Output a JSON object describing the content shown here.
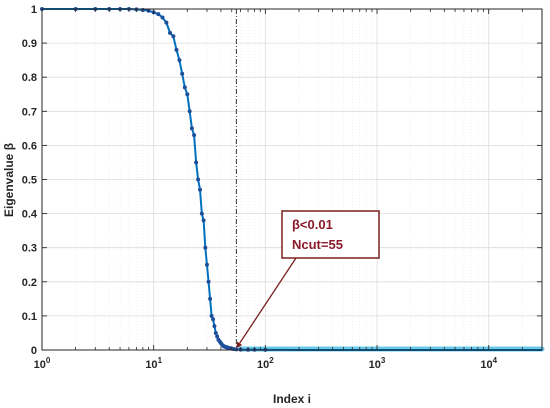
{
  "chart_data": {
    "type": "line",
    "xscale": "log",
    "xlim": [
      1,
      30000
    ],
    "ylim": [
      0,
      1
    ],
    "xlabel": "Index i",
    "ylabel": "Eigenvalue β",
    "grid": true,
    "x_ticks": [
      {
        "value": 1,
        "base": "10",
        "exp": "0"
      },
      {
        "value": 10,
        "base": "10",
        "exp": "1"
      },
      {
        "value": 100,
        "base": "10",
        "exp": "2"
      },
      {
        "value": 1000,
        "base": "10",
        "exp": "3"
      },
      {
        "value": 10000,
        "base": "10",
        "exp": "4"
      }
    ],
    "y_ticks": [
      {
        "value": 0,
        "label": "0"
      },
      {
        "value": 0.1,
        "label": "0.1"
      },
      {
        "value": 0.2,
        "label": "0.2"
      },
      {
        "value": 0.3,
        "label": "0.3"
      },
      {
        "value": 0.4,
        "label": "0.4"
      },
      {
        "value": 0.5,
        "label": "0.5"
      },
      {
        "value": 0.6,
        "label": "0.6"
      },
      {
        "value": 0.7,
        "label": "0.7"
      },
      {
        "value": 0.8,
        "label": "0.8"
      },
      {
        "value": 0.9,
        "label": "0.9"
      },
      {
        "value": 1,
        "label": "1"
      }
    ],
    "series": [
      {
        "color": "#0072BD",
        "marker_color": "#1F4E9A",
        "x": [
          1,
          2,
          3,
          4,
          5,
          6,
          7,
          8,
          9,
          10,
          11,
          12,
          13,
          14,
          15,
          16,
          17,
          18,
          19,
          20,
          21,
          22,
          23,
          24,
          25,
          26,
          27,
          28,
          29,
          30,
          31,
          32,
          33,
          34,
          35,
          36,
          37,
          38,
          39,
          40,
          41,
          42,
          43,
          44,
          45,
          46,
          47,
          48,
          49,
          50,
          52,
          55,
          60,
          70,
          80,
          100,
          150,
          200,
          300,
          500,
          1000,
          2000,
          5000,
          10000,
          30000
        ],
        "y": [
          1,
          1,
          1,
          1,
          1,
          1,
          0.999,
          0.997,
          0.995,
          0.99,
          0.985,
          0.975,
          0.96,
          0.93,
          0.92,
          0.88,
          0.85,
          0.81,
          0.77,
          0.75,
          0.7,
          0.65,
          0.63,
          0.55,
          0.5,
          0.47,
          0.4,
          0.38,
          0.3,
          0.25,
          0.2,
          0.15,
          0.1,
          0.09,
          0.07,
          0.05,
          0.04,
          0.03,
          0.025,
          0.02,
          0.015,
          0.012,
          0.01,
          0.009,
          0.008,
          0.007,
          0.006,
          0.005,
          0.005,
          0.004,
          0.003,
          0.002,
          0.001,
          0.0008,
          0.0006,
          0.0004,
          0.0002,
          0.0001,
          0,
          0,
          0,
          0,
          0,
          0,
          0
        ]
      }
    ],
    "threshold_line": {
      "x": 55,
      "style": "dash-dot",
      "color": "#333333"
    },
    "annotation": {
      "lines": [
        "β<0.01",
        "Ncut=55"
      ],
      "text_color": "#8B1A2B",
      "box_border": "#7A1F1F",
      "arrow_to": {
        "x": 55,
        "y": 0.005
      }
    }
  }
}
